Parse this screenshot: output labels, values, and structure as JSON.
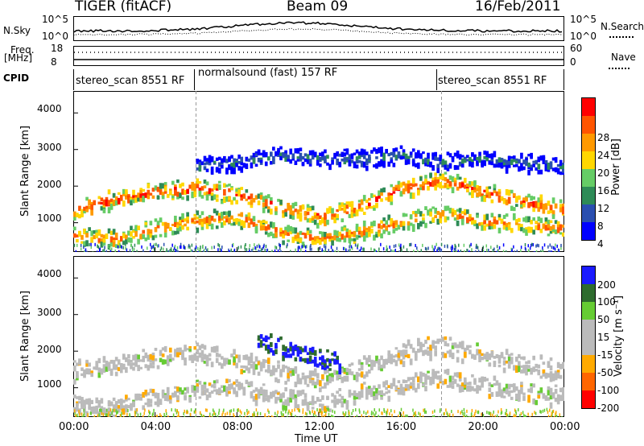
{
  "header": {
    "radar_title": "TIGER (fitACF)",
    "beam": "Beam 09",
    "date": "16/Feb/2011"
  },
  "strip_labels": {
    "nsky": "N.Sky",
    "nsearch": "N.Search",
    "freq": "Freq.",
    "freq_unit": "[MHz]",
    "nave": "Nave",
    "cpid": "CPID",
    "nsky_ticks": [
      "10^5",
      "10^0"
    ],
    "nsky_right_ticks": [
      "10^5",
      "10^0"
    ],
    "freq_ticks": [
      "18",
      "8"
    ],
    "nave_ticks": [
      "60",
      "0"
    ]
  },
  "cpid_segments": [
    {
      "label": "stereo_scan 8551 RF",
      "start": 0,
      "end": 6
    },
    {
      "label": "normalsound (fast) 157 RF",
      "start": 6,
      "end": 18
    },
    {
      "label": "stereo_scan 8551 RF",
      "start": 18,
      "end": 24
    }
  ],
  "colors": {
    "power_scale": [
      "#0000ff",
      "#2a4fb0",
      "#2e8b57",
      "#66cc66",
      "#ffd700",
      "#ff9900",
      "#ff5500",
      "#ff0000"
    ],
    "velocity_scale": [
      "#1a1aff",
      "#2e6b2e",
      "#66cc33",
      "#bbbbbb",
      "#bbbbbb",
      "#ffaa00",
      "#ff6600",
      "#ff0000"
    ]
  },
  "chart_data": [
    {
      "type": "heatmap",
      "name": "power",
      "xlabel": "Time UT",
      "ylabel": "Slant Range [km]",
      "ylim": [
        200,
        4600
      ],
      "xlim": [
        0,
        24
      ],
      "y_ticks": [
        "1000",
        "2000",
        "3000",
        "4000"
      ],
      "colorbar_label": "Power [dB]",
      "colorbar_ticks": [
        "28",
        "24",
        "20",
        "16",
        "12",
        "8",
        "4"
      ],
      "echo_bands": [
        {
          "t": [
            0,
            2,
            4,
            6,
            8,
            10,
            12,
            14,
            16,
            18,
            20,
            22,
            24
          ],
          "range": [
            1400,
            1700,
            1900,
            2000,
            1800,
            1500,
            1200,
            1500,
            2000,
            2200,
            1900,
            1600,
            1400
          ],
          "level": 26
        },
        {
          "t": [
            0,
            2,
            4,
            6,
            8,
            10,
            12,
            14,
            16,
            18,
            20,
            22,
            24
          ],
          "range": [
            700,
            600,
            900,
            1100,
            1200,
            800,
            600,
            800,
            1100,
            1300,
            1100,
            1000,
            900
          ],
          "level": 24
        },
        {
          "t": [
            6,
            8,
            10,
            12,
            14,
            16,
            18,
            20,
            22,
            24
          ],
          "range": [
            2600,
            2700,
            2900,
            2800,
            2800,
            2900,
            2700,
            2800,
            2700,
            2600
          ],
          "level": 8
        }
      ]
    },
    {
      "type": "heatmap",
      "name": "velocity",
      "xlabel": "Time UT",
      "ylabel": "Slant Range [km]",
      "ylim": [
        200,
        4600
      ],
      "xlim": [
        0,
        24
      ],
      "y_ticks": [
        "1000",
        "2000",
        "3000",
        "4000"
      ],
      "x_ticks": [
        "00:00",
        "04:00",
        "08:00",
        "12:00",
        "16:00",
        "20:00",
        "00:00"
      ],
      "colorbar_label": "Velocity [m s⁻¹]",
      "colorbar_ticks": [
        "200",
        "100",
        "50",
        "15",
        "-15",
        "-50",
        "-100",
        "-200"
      ],
      "echo_bands": [
        {
          "t": [
            0,
            2,
            4,
            6,
            8,
            10,
            12,
            14,
            16,
            18,
            20,
            22,
            24
          ],
          "range": [
            1500,
            1700,
            1900,
            2000,
            1800,
            1500,
            1200,
            1600,
            2000,
            2200,
            1900,
            1700,
            1500
          ],
          "level": 0
        },
        {
          "t": [
            0,
            2,
            4,
            6,
            8,
            10,
            12,
            14,
            16,
            18,
            20,
            22,
            24
          ],
          "range": [
            600,
            500,
            800,
            1000,
            1100,
            800,
            600,
            900,
            1100,
            1300,
            1100,
            900,
            800
          ],
          "level": 0
        },
        {
          "t": [
            9,
            11,
            13
          ],
          "range": [
            2400,
            2000,
            1700
          ],
          "level": 150
        }
      ]
    }
  ]
}
